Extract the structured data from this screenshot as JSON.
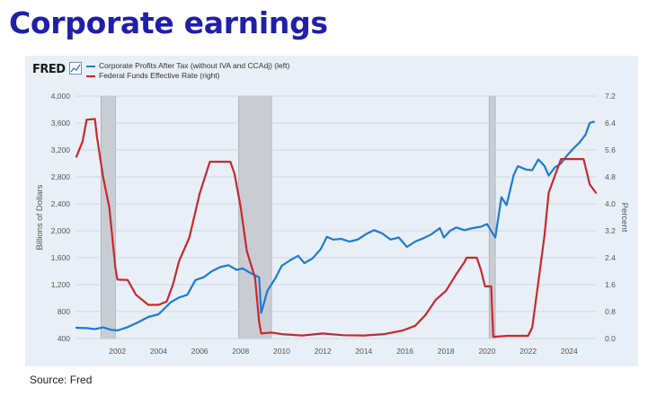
{
  "slide": {
    "title": "Corporate earnings",
    "source": "Source: Fred"
  },
  "fred": {
    "logo": "FRED"
  },
  "colors": {
    "title": "#1f1fa8",
    "profits": "#1f7ad1",
    "fedfunds": "#c8282e",
    "recession": "#c9cdd3",
    "panel": "#e8eff7"
  },
  "chart_data": {
    "type": "line",
    "title": "",
    "legend_position": "top-left",
    "grid": true,
    "xlabel": "",
    "x_range": [
      2000.0,
      2025.3
    ],
    "x_ticks": [
      2002,
      2004,
      2006,
      2008,
      2010,
      2012,
      2014,
      2016,
      2018,
      2020,
      2022,
      2024
    ],
    "y_left": {
      "label": "Billions of Dollars",
      "range": [
        400,
        4000
      ],
      "ticks": [
        400,
        800,
        1200,
        1600,
        2000,
        2400,
        2800,
        3200,
        3600,
        4000
      ],
      "tick_labels": [
        "400",
        "800",
        "1,200",
        "1,600",
        "2,000",
        "2,400",
        "2,800",
        "3,200",
        "3,600",
        "4,000"
      ]
    },
    "y_right": {
      "label": "Percent",
      "range": [
        0.0,
        7.2
      ],
      "ticks": [
        0.0,
        0.8,
        1.6,
        2.4,
        3.2,
        4.0,
        4.8,
        5.6,
        6.4,
        7.2
      ],
      "tick_labels": [
        "0.0",
        "0.8",
        "1.6",
        "2.4",
        "3.2",
        "4.0",
        "4.8",
        "5.6",
        "6.4",
        "7.2"
      ]
    },
    "recessions": [
      [
        2001.2,
        2001.9
      ],
      [
        2007.9,
        2009.5
      ],
      [
        2020.1,
        2020.4
      ]
    ],
    "series": [
      {
        "name": "Corporate Profits After Tax (without IVA and CCAdj) (left)",
        "axis": "left",
        "color": "#1f7ad1",
        "points": [
          [
            2000.0,
            560
          ],
          [
            2000.5,
            555
          ],
          [
            2000.9,
            540
          ],
          [
            2001.3,
            565
          ],
          [
            2001.7,
            530
          ],
          [
            2002.0,
            520
          ],
          [
            2002.5,
            570
          ],
          [
            2003.0,
            640
          ],
          [
            2003.5,
            720
          ],
          [
            2004.0,
            760
          ],
          [
            2004.3,
            850
          ],
          [
            2004.6,
            940
          ],
          [
            2005.0,
            1010
          ],
          [
            2005.4,
            1050
          ],
          [
            2005.8,
            1270
          ],
          [
            2006.2,
            1310
          ],
          [
            2006.6,
            1400
          ],
          [
            2007.0,
            1460
          ],
          [
            2007.4,
            1490
          ],
          [
            2007.8,
            1420
          ],
          [
            2008.1,
            1440
          ],
          [
            2008.5,
            1370
          ],
          [
            2008.9,
            1310
          ],
          [
            2009.0,
            780
          ],
          [
            2009.3,
            1110
          ],
          [
            2009.7,
            1300
          ],
          [
            2010.0,
            1480
          ],
          [
            2010.4,
            1560
          ],
          [
            2010.8,
            1630
          ],
          [
            2011.1,
            1520
          ],
          [
            2011.5,
            1590
          ],
          [
            2011.9,
            1730
          ],
          [
            2012.2,
            1910
          ],
          [
            2012.5,
            1870
          ],
          [
            2012.9,
            1880
          ],
          [
            2013.3,
            1840
          ],
          [
            2013.7,
            1870
          ],
          [
            2014.1,
            1950
          ],
          [
            2014.5,
            2010
          ],
          [
            2014.9,
            1960
          ],
          [
            2015.3,
            1870
          ],
          [
            2015.7,
            1900
          ],
          [
            2016.1,
            1760
          ],
          [
            2016.5,
            1840
          ],
          [
            2016.9,
            1890
          ],
          [
            2017.3,
            1950
          ],
          [
            2017.7,
            2040
          ],
          [
            2017.9,
            1900
          ],
          [
            2018.2,
            2000
          ],
          [
            2018.5,
            2050
          ],
          [
            2018.9,
            2010
          ],
          [
            2019.3,
            2040
          ],
          [
            2019.7,
            2060
          ],
          [
            2020.0,
            2100
          ],
          [
            2020.4,
            1900
          ],
          [
            2020.7,
            2500
          ],
          [
            2020.95,
            2380
          ],
          [
            2021.3,
            2830
          ],
          [
            2021.5,
            2960
          ],
          [
            2021.9,
            2910
          ],
          [
            2022.2,
            2900
          ],
          [
            2022.5,
            3060
          ],
          [
            2022.8,
            2960
          ],
          [
            2023.0,
            2820
          ],
          [
            2023.3,
            2940
          ],
          [
            2023.6,
            3000
          ],
          [
            2023.9,
            3120
          ],
          [
            2024.2,
            3220
          ],
          [
            2024.5,
            3310
          ],
          [
            2024.8,
            3430
          ],
          [
            2025.0,
            3600
          ],
          [
            2025.2,
            3620
          ]
        ]
      },
      {
        "name": "Federal Funds Effective Rate (right)",
        "axis": "right",
        "color": "#c8282e",
        "points": [
          [
            2000.0,
            5.4
          ],
          [
            2000.3,
            5.85
          ],
          [
            2000.5,
            6.5
          ],
          [
            2000.9,
            6.52
          ],
          [
            2001.0,
            6.0
          ],
          [
            2001.3,
            4.8
          ],
          [
            2001.6,
            3.9
          ],
          [
            2001.9,
            2.1
          ],
          [
            2002.0,
            1.75
          ],
          [
            2002.5,
            1.74
          ],
          [
            2002.9,
            1.3
          ],
          [
            2003.5,
            1.0
          ],
          [
            2004.0,
            1.0
          ],
          [
            2004.4,
            1.1
          ],
          [
            2004.7,
            1.6
          ],
          [
            2005.0,
            2.3
          ],
          [
            2005.5,
            3.0
          ],
          [
            2006.0,
            4.3
          ],
          [
            2006.5,
            5.25
          ],
          [
            2007.0,
            5.25
          ],
          [
            2007.5,
            5.25
          ],
          [
            2007.7,
            4.9
          ],
          [
            2008.0,
            3.9
          ],
          [
            2008.3,
            2.6
          ],
          [
            2008.7,
            1.8
          ],
          [
            2008.9,
            0.5
          ],
          [
            2009.0,
            0.15
          ],
          [
            2009.5,
            0.18
          ],
          [
            2010.0,
            0.13
          ],
          [
            2011.0,
            0.09
          ],
          [
            2012.0,
            0.15
          ],
          [
            2013.0,
            0.1
          ],
          [
            2014.0,
            0.09
          ],
          [
            2015.0,
            0.13
          ],
          [
            2015.9,
            0.24
          ],
          [
            2016.5,
            0.38
          ],
          [
            2017.0,
            0.7
          ],
          [
            2017.5,
            1.15
          ],
          [
            2018.0,
            1.42
          ],
          [
            2018.5,
            1.91
          ],
          [
            2018.9,
            2.27
          ],
          [
            2019.0,
            2.4
          ],
          [
            2019.5,
            2.4
          ],
          [
            2019.7,
            2.04
          ],
          [
            2019.9,
            1.55
          ],
          [
            2020.2,
            1.55
          ],
          [
            2020.3,
            0.05
          ],
          [
            2021.0,
            0.08
          ],
          [
            2022.0,
            0.08
          ],
          [
            2022.2,
            0.33
          ],
          [
            2022.5,
            1.68
          ],
          [
            2022.8,
            3.08
          ],
          [
            2023.0,
            4.33
          ],
          [
            2023.3,
            4.83
          ],
          [
            2023.6,
            5.33
          ],
          [
            2024.0,
            5.33
          ],
          [
            2024.7,
            5.33
          ],
          [
            2024.9,
            4.83
          ],
          [
            2025.0,
            4.58
          ],
          [
            2025.3,
            4.33
          ]
        ]
      }
    ]
  }
}
